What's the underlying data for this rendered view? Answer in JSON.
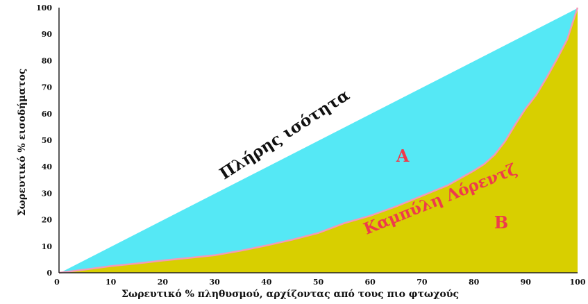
{
  "chart_data": {
    "type": "area",
    "title": "",
    "xlabel": "Σωρευτικό % πληθυσμού, αρχίζοντας από τους πιο φτωχούς",
    "ylabel": "Σωρευτικό % εισοδήματος",
    "xlim": [
      0,
      100
    ],
    "ylim": [
      0,
      100
    ],
    "xticks": [
      0,
      10,
      20,
      30,
      40,
      50,
      60,
      70,
      80,
      90,
      100
    ],
    "yticks": [
      0,
      10,
      20,
      30,
      40,
      50,
      60,
      70,
      80,
      90,
      100
    ],
    "grid": false,
    "equality_line": {
      "x": [
        0,
        100
      ],
      "y": [
        0,
        100
      ]
    },
    "lorenz_curve": {
      "x": [
        0,
        5,
        10,
        15,
        20,
        25,
        30,
        35,
        40,
        45,
        50,
        55,
        60,
        65,
        70,
        75,
        80,
        82,
        84,
        86,
        88,
        90,
        92,
        94,
        96,
        98,
        99,
        100
      ],
      "y": [
        0,
        1.2,
        2.5,
        3.5,
        4.6,
        5.6,
        6.6,
        8.3,
        10.3,
        12.5,
        15,
        18.7,
        21.5,
        25,
        29,
        33,
        38.5,
        41,
        44.5,
        49.5,
        56,
        62,
        67,
        73.5,
        80.5,
        88,
        94,
        100
      ]
    },
    "annotations": {
      "equality": "Πλήρης ισότητα",
      "curve": "Καμπύλη Λόρεντζ",
      "area_a": "A",
      "area_b": "B"
    },
    "colors": {
      "area_a": "#55e8f5",
      "area_b": "#d8cf00",
      "curve": "#f39ab8",
      "equality_line": "#ffffff",
      "curve_text": "#ee3b4b",
      "label_text": "#111111"
    }
  }
}
